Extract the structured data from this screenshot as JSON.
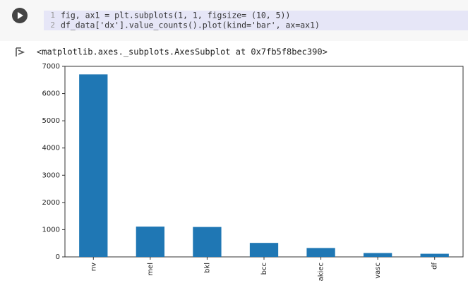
{
  "cell": {
    "line_numbers": [
      "1",
      "2"
    ],
    "code": [
      "fig, ax1 = plt.subplots(1, 1, figsize= (10, 5))",
      "df_data['dx'].value_counts().plot(kind='bar', ax=ax1)"
    ]
  },
  "output": {
    "text": "<matplotlib.axes._subplots.AxesSubplot at 0x7fb5f8bec390>"
  },
  "chart_data": {
    "type": "bar",
    "categories": [
      "nv",
      "mel",
      "bkl",
      "bcc",
      "akiec",
      "vasc",
      "df"
    ],
    "values": [
      6705,
      1113,
      1099,
      514,
      327,
      142,
      115
    ],
    "color": "#1f77b4",
    "ylim": [
      0,
      7000
    ],
    "yticks": [
      0,
      1000,
      2000,
      3000,
      4000,
      5000,
      6000,
      7000
    ],
    "grid": false
  }
}
